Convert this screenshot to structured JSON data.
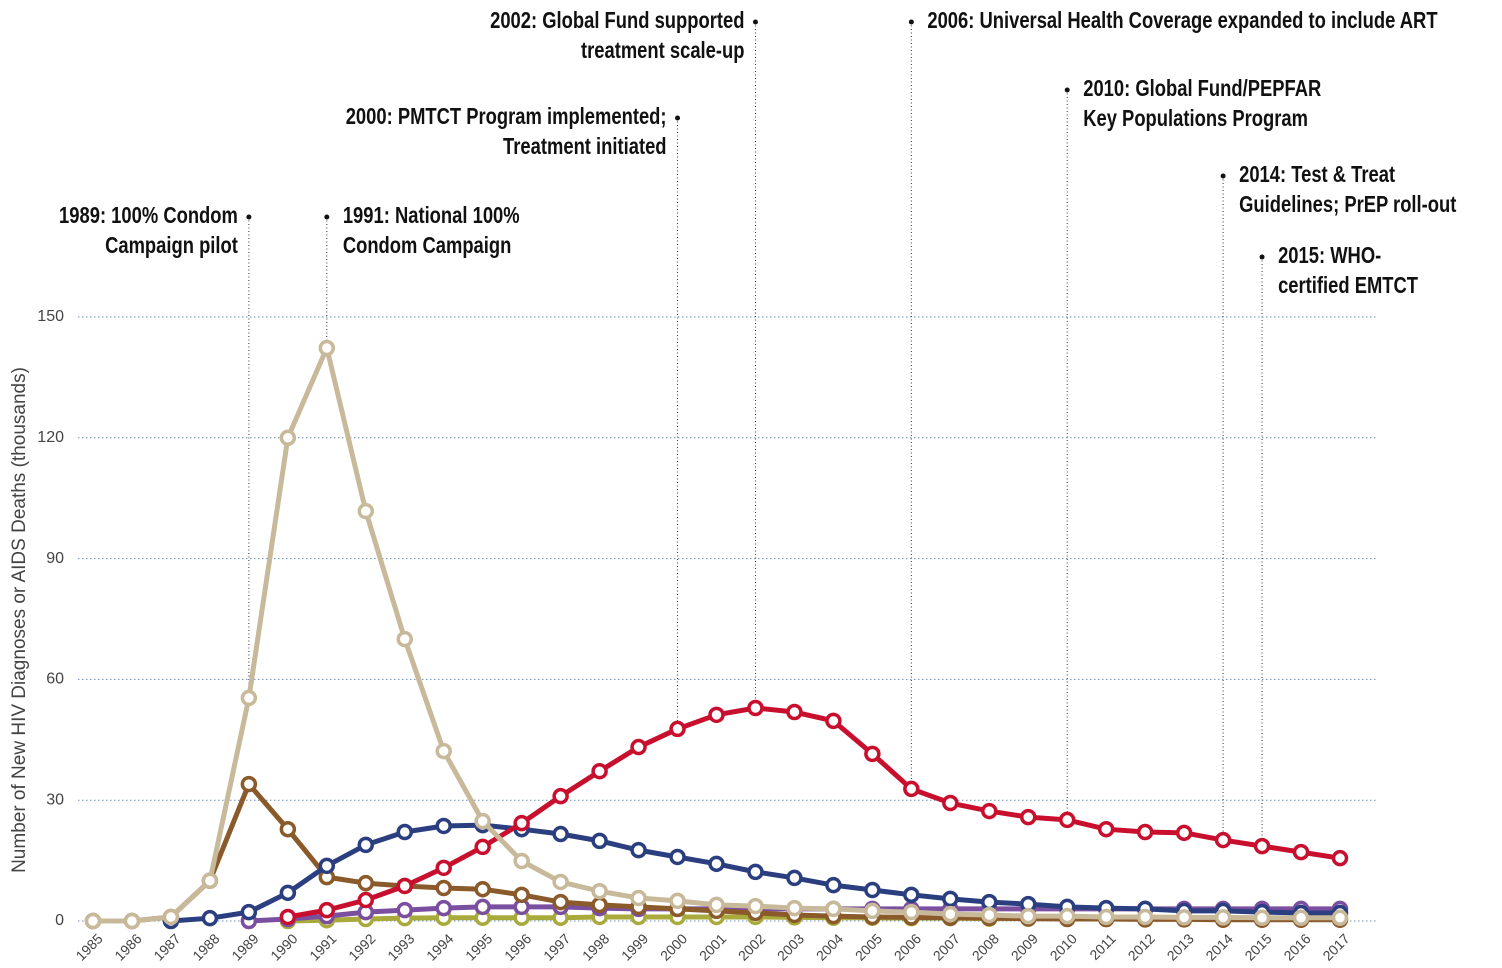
{
  "chart_data": {
    "type": "line",
    "y_label": "Number of New HIV Diagnoses or AIDS Deaths (thousands)",
    "x": [
      1985,
      1986,
      1987,
      1988,
      1989,
      1990,
      1991,
      1992,
      1993,
      1994,
      1995,
      1996,
      1997,
      1998,
      1999,
      2000,
      2001,
      2002,
      2003,
      2004,
      2005,
      2006,
      2007,
      2008,
      2009,
      2010,
      2011,
      2012,
      2013,
      2014,
      2015,
      2016,
      2017
    ],
    "xlim": [
      1985,
      2017
    ],
    "ylim": [
      0,
      150
    ],
    "yticks": [
      0,
      30,
      60,
      90,
      120,
      150
    ],
    "grid": true,
    "series": [
      {
        "color": "#a9aa3c",
        "values": [
          null,
          null,
          null,
          null,
          null,
          0,
          0.2,
          0.5,
          0.7,
          0.8,
          0.8,
          0.8,
          0.8,
          1,
          1,
          1,
          1,
          1,
          0.9,
          0.8,
          0.8,
          0.7,
          0.7,
          0.6,
          0.6,
          0.6,
          0.5,
          0.5,
          0.5,
          0.5,
          0.5,
          0.5,
          0.5
        ]
      },
      {
        "color": "#7b4fa0",
        "values": [
          null,
          null,
          null,
          null,
          0,
          0.5,
          1.2,
          2.2,
          2.7,
          3.2,
          3.5,
          3.5,
          3.5,
          3.2,
          3,
          3,
          3,
          3,
          3,
          3,
          3,
          3,
          3,
          3,
          3,
          3,
          3,
          3,
          3,
          3,
          3,
          3,
          3
        ]
      },
      {
        "color": "#8b5a2b",
        "values": [
          0,
          0,
          1,
          10,
          34,
          22.8,
          10.9,
          9.4,
          8.7,
          8.2,
          7.9,
          6.5,
          4.7,
          4,
          3.5,
          3,
          2.5,
          2,
          1.5,
          1.2,
          1,
          0.9,
          0.8,
          0.7,
          0.6,
          0.5,
          0.5,
          0.4,
          0.4,
          0.3,
          0.3,
          0.3,
          0.3
        ]
      },
      {
        "color": "#2b3f80",
        "values": [
          null,
          null,
          0,
          0.7,
          2.2,
          7,
          13.7,
          18.9,
          22.1,
          23.6,
          23.8,
          22.8,
          21.6,
          19.9,
          17.6,
          15.9,
          14.2,
          12.2,
          10.7,
          8.9,
          7.7,
          6.5,
          5.5,
          4.7,
          4.2,
          3.5,
          3.2,
          3,
          2.5,
          2.5,
          2.2,
          2,
          2
        ]
      },
      {
        "color": "#c8102e",
        "values": [
          null,
          null,
          null,
          null,
          null,
          1,
          2.7,
          5.2,
          8.7,
          13.2,
          18.4,
          24.3,
          31,
          37.2,
          43.2,
          47.7,
          51.2,
          52.9,
          51.9,
          49.7,
          41.5,
          32.8,
          29.3,
          27.3,
          25.8,
          25.1,
          22.8,
          22.1,
          21.9,
          20.1,
          18.6,
          17.1,
          15.6
        ]
      },
      {
        "color": "#c8b99a",
        "values": [
          0,
          0,
          1,
          10,
          55.4,
          120,
          142.3,
          101.8,
          70,
          42.2,
          24.8,
          14.9,
          9.7,
          7.4,
          5.7,
          5,
          4,
          3.7,
          3.2,
          3,
          2.5,
          2.2,
          1.7,
          1.5,
          1.2,
          1.2,
          1,
          1,
          0.9,
          0.9,
          0.8,
          0.8,
          0.8
        ]
      }
    ],
    "annotations": [
      {
        "x": 1989,
        "text": [
          "1989: 100% Condom",
          "Campaign pilot"
        ]
      },
      {
        "x": 1991,
        "text": [
          "1991: National 100%",
          "Condom Campaign"
        ]
      },
      {
        "x": 2000,
        "text": [
          "2000: PMTCT Program implemented;",
          "Treatment initiated"
        ]
      },
      {
        "x": 2002,
        "text": [
          "2002: Global Fund supported",
          "treatment scale-up"
        ]
      },
      {
        "x": 2006,
        "text": [
          "2006: Universal Health Coverage expanded to include ART"
        ]
      },
      {
        "x": 2010,
        "text": [
          "2010: Global Fund/PEPFAR",
          "Key Populations Program"
        ]
      },
      {
        "x": 2014,
        "text": [
          "2014: Test & Treat",
          "Guidelines; PrEP roll-out"
        ]
      },
      {
        "x": 2015,
        "text": [
          "2015: WHO-",
          "certified EMTCT"
        ]
      }
    ]
  }
}
